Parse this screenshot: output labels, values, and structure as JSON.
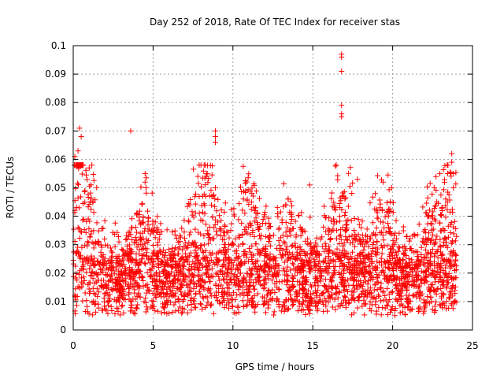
{
  "chart_data": {
    "type": "scatter",
    "title": "Day 252 of 2018, Rate Of TEC Index for receiver stas",
    "xlabel": "GPS time / hours",
    "ylabel": "ROTI / TECUs",
    "xlim": [
      0,
      25
    ],
    "ylim": [
      0,
      0.1
    ],
    "x_ticks": [
      0,
      5,
      10,
      15,
      20,
      25
    ],
    "y_ticks": [
      0,
      0.01,
      0.02,
      0.03,
      0.04,
      0.05,
      0.06,
      0.07,
      0.08,
      0.09,
      0.1
    ],
    "x_tick_labels": [
      "0",
      "5",
      "10",
      "15",
      "20",
      "25"
    ],
    "y_tick_labels": [
      "0",
      "0.01",
      "0.02",
      "0.03",
      "0.04",
      "0.05",
      "0.06",
      "0.07",
      "0.08",
      "0.09",
      "0.1"
    ],
    "grid": true,
    "marker": "+",
    "marker_color": "#ff0000",
    "notable_points": [
      {
        "x": 0.1,
        "y": 0.061
      },
      {
        "x": 0.2,
        "y": 0.058
      },
      {
        "x": 0.4,
        "y": 0.071
      },
      {
        "x": 0.5,
        "y": 0.068
      },
      {
        "x": 0.3,
        "y": 0.063
      },
      {
        "x": 1.0,
        "y": 0.057
      },
      {
        "x": 3.6,
        "y": 0.07
      },
      {
        "x": 4.5,
        "y": 0.055
      },
      {
        "x": 4.5,
        "y": 0.052
      },
      {
        "x": 7.8,
        "y": 0.054
      },
      {
        "x": 8.9,
        "y": 0.07
      },
      {
        "x": 8.9,
        "y": 0.068
      },
      {
        "x": 8.9,
        "y": 0.066
      },
      {
        "x": 8.9,
        "y": 0.05
      },
      {
        "x": 10.8,
        "y": 0.049
      },
      {
        "x": 14.8,
        "y": 0.051
      },
      {
        "x": 16.8,
        "y": 0.097
      },
      {
        "x": 16.8,
        "y": 0.096
      },
      {
        "x": 16.8,
        "y": 0.091
      },
      {
        "x": 16.8,
        "y": 0.079
      },
      {
        "x": 16.8,
        "y": 0.076
      },
      {
        "x": 16.8,
        "y": 0.075
      },
      {
        "x": 17.8,
        "y": 0.053
      },
      {
        "x": 19.4,
        "y": 0.052
      },
      {
        "x": 22.6,
        "y": 0.05
      },
      {
        "x": 23.7,
        "y": 0.062
      },
      {
        "x": 23.7,
        "y": 0.059
      },
      {
        "x": 23.8,
        "y": 0.055
      },
      {
        "x": 23.8,
        "y": 0.05
      }
    ],
    "bulk_series": {
      "x_range": [
        0,
        24
      ],
      "baseline_range": [
        0.005,
        0.025
      ],
      "peak_level": 0.035
    }
  }
}
